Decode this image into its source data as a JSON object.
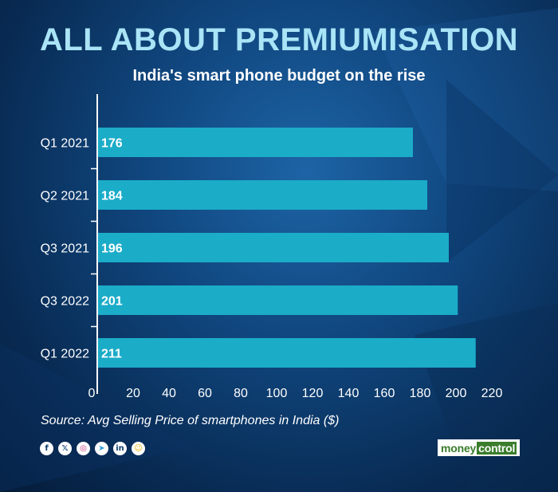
{
  "chart_data": {
    "type": "bar",
    "orientation": "horizontal",
    "title": "ALL ABOUT PREMIUMISATION",
    "subtitle": "India's smart phone budget on the rise",
    "categories": [
      "Q1 2021",
      "Q2 2021",
      "Q3 2021",
      "Q3 2022",
      "Q1 2022"
    ],
    "values": [
      176,
      184,
      196,
      201,
      211
    ],
    "x_ticks": [
      0,
      20,
      40,
      60,
      80,
      100,
      120,
      140,
      160,
      180,
      200,
      220
    ],
    "xlim": [
      0,
      220
    ],
    "grid": false,
    "bar_color": "#1bacc8",
    "source": "Source: Avg Selling Price of smartphones in India ($)"
  },
  "footer": {
    "social_icons": [
      {
        "name": "facebook-icon",
        "glyph": "f",
        "cls": ""
      },
      {
        "name": "x-twitter-icon",
        "glyph": "𝕏",
        "cls": ""
      },
      {
        "name": "instagram-icon",
        "glyph": "◎",
        "cls": "ig"
      },
      {
        "name": "telegram-icon",
        "glyph": "➤",
        "cls": "tg"
      },
      {
        "name": "linkedin-icon",
        "glyph": "in",
        "cls": ""
      },
      {
        "name": "snapchat-icon",
        "glyph": "☺",
        "cls": "sc"
      }
    ],
    "logo": {
      "part1": "money",
      "part2": "control"
    }
  },
  "colors": {
    "title": "#a9e4f7",
    "bar": "#1bacc8",
    "text": "#ffffff",
    "logo_green": "#3a7d2c"
  }
}
